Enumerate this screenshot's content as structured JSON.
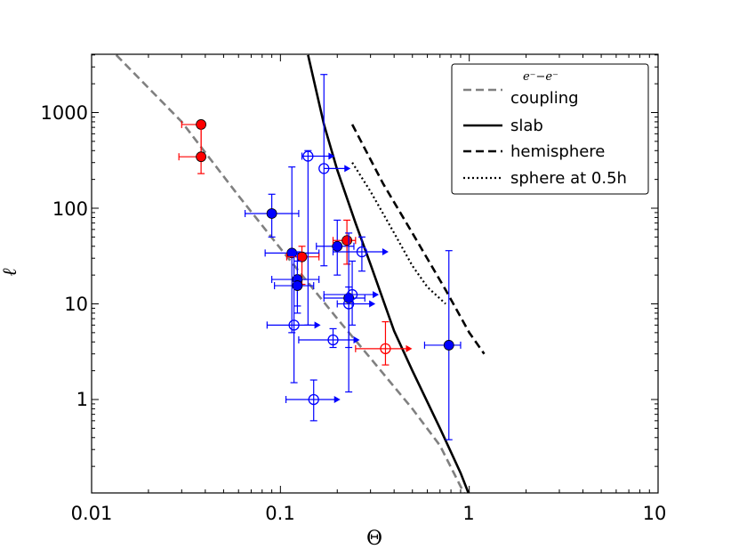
{
  "chart_data": {
    "type": "scatter",
    "title": "",
    "xlabel": "Θ",
    "ylabel": "ℓ",
    "xscale": "log",
    "yscale": "log",
    "xlim": [
      0.01,
      10
    ],
    "ylim": [
      0.1,
      4000
    ],
    "xticks": [
      {
        "value": 0.01,
        "label": "0.01"
      },
      {
        "value": 0.1,
        "label": "0.1"
      },
      {
        "value": 1,
        "label": "1"
      },
      {
        "value": 10,
        "label": "10"
      }
    ],
    "yticks": [
      {
        "value": 1,
        "label": "1"
      },
      {
        "value": 10,
        "label": "10"
      },
      {
        "value": 100,
        "label": "100"
      },
      {
        "value": 1000,
        "label": "1000"
      }
    ],
    "legend": {
      "position": "top-right",
      "entries": [
        {
          "math": "e⁻−e⁻",
          "label": "coupling",
          "style": "gray-dashed"
        },
        {
          "label": "slab",
          "style": "solid"
        },
        {
          "label": "hemisphere",
          "style": "dashed"
        },
        {
          "label": "sphere at 0.5h",
          "style": "dotted"
        }
      ]
    },
    "lines": [
      {
        "name": "coupling",
        "style": "gray-dashed",
        "color": "#808080",
        "x": [
          0.0135,
          0.03,
          0.06,
          0.1,
          0.2,
          0.3,
          0.5,
          0.7,
          0.95
        ],
        "y": [
          4000,
          800,
          135,
          38,
          7,
          2.7,
          0.8,
          0.33,
          0.1
        ]
      },
      {
        "name": "slab",
        "style": "solid",
        "color": "#000000",
        "x": [
          0.14,
          0.17,
          0.2,
          0.25,
          0.3,
          0.4,
          0.5,
          0.7,
          0.9,
          1.0
        ],
        "y": [
          4000,
          750,
          250,
          70,
          26,
          5.2,
          2.0,
          0.5,
          0.17,
          0.1
        ]
      },
      {
        "name": "hemisphere",
        "style": "dashed",
        "color": "#000000",
        "x": [
          0.24,
          0.35,
          0.5,
          0.75,
          1.0,
          1.2
        ],
        "y": [
          750,
          180,
          55,
          14,
          5,
          3
        ]
      },
      {
        "name": "sphere at 0.5h",
        "style": "dotted",
        "color": "#000000",
        "x": [
          0.24,
          0.3,
          0.4,
          0.5,
          0.6,
          0.75
        ],
        "y": [
          300,
          150,
          55,
          25,
          15,
          10
        ]
      }
    ],
    "points": [
      {
        "x": 0.038,
        "y": 750,
        "color": "#ff0000",
        "filled": true,
        "xerr_left": 0.03,
        "yerr": [
          345,
          750
        ]
      },
      {
        "x": 0.038,
        "y": 345,
        "color": "#ff0000",
        "filled": true,
        "xerr_left": 0.029,
        "yerr": [
          230,
          750
        ]
      },
      {
        "x": 0.09,
        "y": 88,
        "color": "#0000ff",
        "filled": true,
        "xerr": [
          0.065,
          0.125
        ],
        "yerr": [
          50,
          140
        ]
      },
      {
        "x": 0.115,
        "y": 34,
        "color": "#0000ff",
        "filled": true,
        "xerr": [
          0.083,
          0.16
        ],
        "yerr": [
          5,
          270
        ]
      },
      {
        "x": 0.13,
        "y": 31,
        "color": "#ff0000",
        "filled": true,
        "xerr": [
          0.108,
          0.16
        ],
        "yerr": [
          16,
          40
        ]
      },
      {
        "x": 0.123,
        "y": 18,
        "color": "#0000ff",
        "filled": true,
        "xerr": [
          0.09,
          0.16
        ],
        "yerr": [
          9.5,
          35
        ]
      },
      {
        "x": 0.123,
        "y": 15.5,
        "color": "#0000ff",
        "filled": true,
        "xerr": [
          0.093,
          0.15
        ],
        "yerr": [
          8,
          28
        ]
      },
      {
        "x": 0.2,
        "y": 40,
        "color": "#0000ff",
        "filled": true,
        "xerr": [
          0.155,
          0.245
        ],
        "yerr": [
          20,
          75
        ]
      },
      {
        "x": 0.225,
        "y": 46,
        "color": "#ff0000",
        "filled": true,
        "xerr": [
          0.19,
          0.25
        ],
        "yerr": [
          26,
          75
        ]
      },
      {
        "x": 0.23,
        "y": 11.5,
        "color": "#0000ff",
        "filled": true,
        "xerr": [
          0.17,
          0.28
        ],
        "yerr": [
          1.2,
          55
        ]
      },
      {
        "x": 0.78,
        "y": 3.7,
        "color": "#0000ff",
        "filled": true,
        "xerr": [
          0.58,
          0.9
        ],
        "yerr": [
          0.38,
          36
        ]
      },
      {
        "x": 0.14,
        "y": 350,
        "color": "#0000ff",
        "filled": false,
        "lowerlimit": true,
        "xerr_left": 0.13,
        "yerr": [
          6,
          400
        ]
      },
      {
        "x": 0.17,
        "y": 260,
        "color": "#0000ff",
        "filled": false,
        "lowerlimit": true,
        "yerr": [
          25,
          2500
        ]
      },
      {
        "x": 0.27,
        "y": 35,
        "color": "#0000ff",
        "filled": false,
        "lowerlimit": true,
        "xerr_left": 0.19,
        "yerr": [
          22,
          50
        ]
      },
      {
        "x": 0.24,
        "y": 12.5,
        "color": "#0000ff",
        "filled": false,
        "lowerlimit": true,
        "xerr_left": 0.17,
        "yerr": [
          6,
          28
        ]
      },
      {
        "x": 0.23,
        "y": 10,
        "color": "#0000ff",
        "filled": false,
        "lowerlimit": true,
        "xerr_left": 0.2,
        "yerr": [
          3.5,
          15
        ]
      },
      {
        "x": 0.118,
        "y": 6,
        "color": "#0000ff",
        "filled": false,
        "lowerlimit": true,
        "xerr_left": 0.085,
        "yerr": [
          1.5,
          33
        ]
      },
      {
        "x": 0.19,
        "y": 4.2,
        "color": "#0000ff",
        "filled": false,
        "lowerlimit": true,
        "xerr_left": 0.125,
        "yerr": [
          3.5,
          5.5
        ]
      },
      {
        "x": 0.36,
        "y": 3.4,
        "color": "#ff0000",
        "filled": false,
        "lowerlimit": true,
        "xerr_left": 0.25,
        "yerr": [
          2.3,
          6.5
        ]
      },
      {
        "x": 0.15,
        "y": 1.0,
        "color": "#0000ff",
        "filled": false,
        "lowerlimit": true,
        "xerr_left": 0.107,
        "yerr": [
          0.6,
          1.6
        ]
      }
    ]
  }
}
